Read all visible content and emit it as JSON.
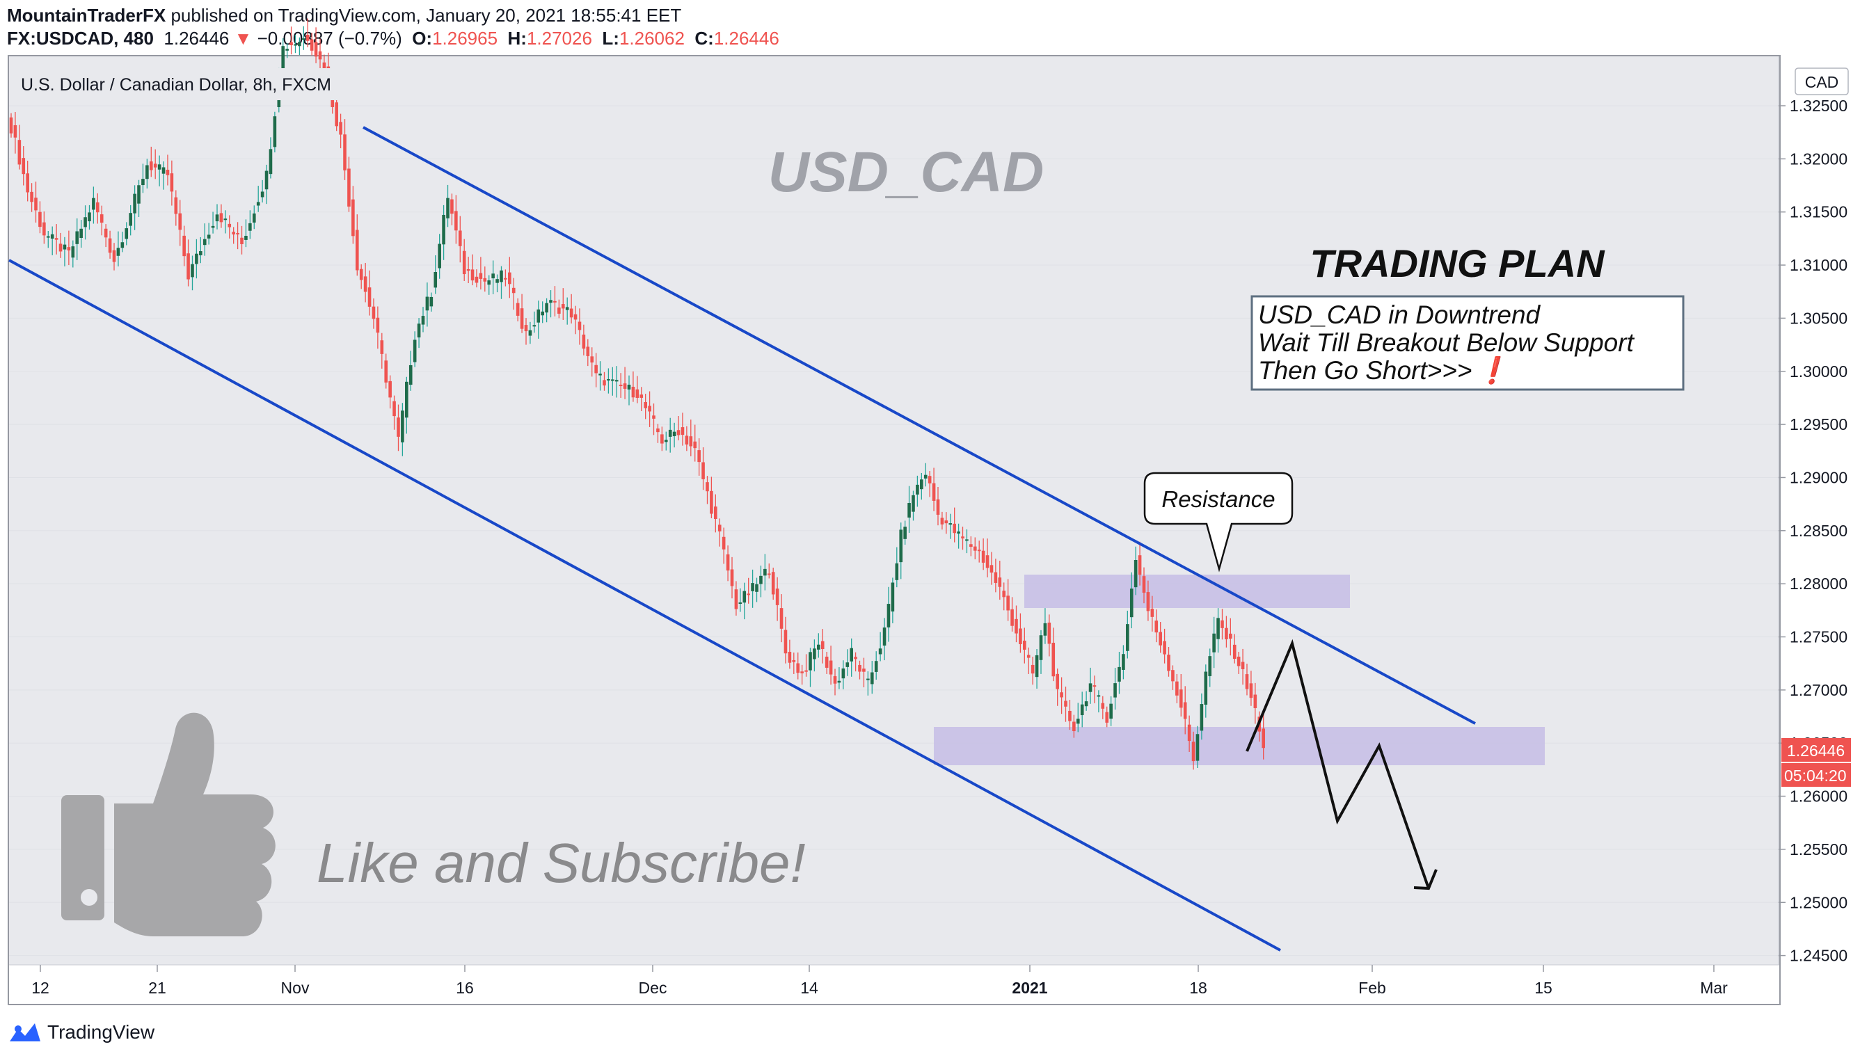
{
  "header": {
    "publisher": "MountainTraderFX",
    "published_text": " published on TradingView.com, January 20, 2021 18:55:41 EET",
    "symbol": "FX:USDCAD, 480",
    "last": "1.26446",
    "change_arrow": "▼",
    "change": "−0.00887 (−0.7%)",
    "o_label": "O:",
    "o_value": "1.26965",
    "h_label": "H:",
    "h_value": "1.27026",
    "l_label": "L:",
    "l_value": "1.26062",
    "c_label": "C:",
    "c_value": "1.26446"
  },
  "chart": {
    "legend_title": "U.S. Dollar / Canadian Dollar, 8h, FXCM",
    "currency": "CAD",
    "watermark": "USD_CAD",
    "plan_title": "TRADING PLAN",
    "plan_lines": [
      "USD_CAD in Downtrend",
      "Wait Till Breakout Below Support",
      "Then Go Short>>>"
    ],
    "plan_exclaim": "❗",
    "resistance_label": "Resistance",
    "subscribe_text": "Like and Subscribe!",
    "price_tag": "1.26446",
    "countdown": "05:04:20",
    "colors": {
      "up": "#26a69a",
      "up_body": "#1e6b4a",
      "down": "#ef5350",
      "channel": "#1848c8",
      "zone": "#c8c0e6",
      "price_tag": "#ef5350"
    }
  },
  "footer": {
    "brand": "TradingView",
    "logo_icon": "tradingview-logo-icon"
  },
  "chart_data": {
    "type": "candlestick",
    "title": "U.S. Dollar / Canadian Dollar, 8h, FXCM",
    "ylim": [
      1.244,
      1.3325
    ],
    "y_ticks": [
      "1.32500",
      "1.32000",
      "1.31500",
      "1.31000",
      "1.30500",
      "1.30000",
      "1.29500",
      "1.29000",
      "1.28500",
      "1.28000",
      "1.27500",
      "1.27000",
      "1.26500",
      "1.26000",
      "1.25500",
      "1.25000",
      "1.24500"
    ],
    "x_ticks": [
      "12",
      "21",
      "Nov",
      "16",
      "Dec",
      "14",
      "2021",
      "18",
      "Feb",
      "15",
      "Mar"
    ],
    "anchors": [
      {
        "i": 0,
        "p": 1.323
      },
      {
        "i": 4,
        "p": 1.317
      },
      {
        "i": 8,
        "p": 1.313
      },
      {
        "i": 14,
        "p": 1.311
      },
      {
        "i": 20,
        "p": 1.316
      },
      {
        "i": 25,
        "p": 1.3105
      },
      {
        "i": 33,
        "p": 1.3195
      },
      {
        "i": 38,
        "p": 1.3185
      },
      {
        "i": 43,
        "p": 1.309
      },
      {
        "i": 50,
        "p": 1.315
      },
      {
        "i": 56,
        "p": 1.312
      },
      {
        "i": 62,
        "p": 1.3185
      },
      {
        "i": 66,
        "p": 1.3305
      },
      {
        "i": 72,
        "p": 1.3315
      },
      {
        "i": 76,
        "p": 1.3285
      },
      {
        "i": 80,
        "p": 1.322
      },
      {
        "i": 84,
        "p": 1.31
      },
      {
        "i": 88,
        "p": 1.305
      },
      {
        "i": 92,
        "p": 1.2975
      },
      {
        "i": 94,
        "p": 1.2935
      },
      {
        "i": 98,
        "p": 1.3035
      },
      {
        "i": 102,
        "p": 1.3075
      },
      {
        "i": 106,
        "p": 1.3165
      },
      {
        "i": 110,
        "p": 1.3095
      },
      {
        "i": 115,
        "p": 1.3085
      },
      {
        "i": 120,
        "p": 1.309
      },
      {
        "i": 125,
        "p": 1.3035
      },
      {
        "i": 130,
        "p": 1.3065
      },
      {
        "i": 136,
        "p": 1.3055
      },
      {
        "i": 142,
        "p": 1.2995
      },
      {
        "i": 148,
        "p": 1.2985
      },
      {
        "i": 152,
        "p": 1.298
      },
      {
        "i": 158,
        "p": 1.2935
      },
      {
        "i": 162,
        "p": 1.2945
      },
      {
        "i": 166,
        "p": 1.2925
      },
      {
        "i": 172,
        "p": 1.2845
      },
      {
        "i": 176,
        "p": 1.278
      },
      {
        "i": 180,
        "p": 1.2795
      },
      {
        "i": 184,
        "p": 1.2815
      },
      {
        "i": 188,
        "p": 1.2735
      },
      {
        "i": 192,
        "p": 1.2715
      },
      {
        "i": 196,
        "p": 1.2745
      },
      {
        "i": 200,
        "p": 1.2705
      },
      {
        "i": 204,
        "p": 1.2735
      },
      {
        "i": 208,
        "p": 1.2705
      },
      {
        "i": 212,
        "p": 1.2755
      },
      {
        "i": 216,
        "p": 1.2845
      },
      {
        "i": 219,
        "p": 1.2885
      },
      {
        "i": 222,
        "p": 1.2905
      },
      {
        "i": 225,
        "p": 1.2865
      },
      {
        "i": 230,
        "p": 1.2845
      },
      {
        "i": 235,
        "p": 1.283
      },
      {
        "i": 240,
        "p": 1.2795
      },
      {
        "i": 244,
        "p": 1.2755
      },
      {
        "i": 248,
        "p": 1.2715
      },
      {
        "i": 251,
        "p": 1.2765
      },
      {
        "i": 254,
        "p": 1.2695
      },
      {
        "i": 258,
        "p": 1.2665
      },
      {
        "i": 262,
        "p": 1.2705
      },
      {
        "i": 266,
        "p": 1.2675
      },
      {
        "i": 270,
        "p": 1.2735
      },
      {
        "i": 273,
        "p": 1.2825
      },
      {
        "i": 276,
        "p": 1.2775
      },
      {
        "i": 280,
        "p": 1.2735
      },
      {
        "i": 284,
        "p": 1.2685
      },
      {
        "i": 287,
        "p": 1.2635
      },
      {
        "i": 290,
        "p": 1.2715
      },
      {
        "i": 293,
        "p": 1.2765
      },
      {
        "i": 297,
        "p": 1.2735
      },
      {
        "i": 301,
        "p": 1.2695
      },
      {
        "i": 304,
        "p": 1.26446
      }
    ]
  }
}
